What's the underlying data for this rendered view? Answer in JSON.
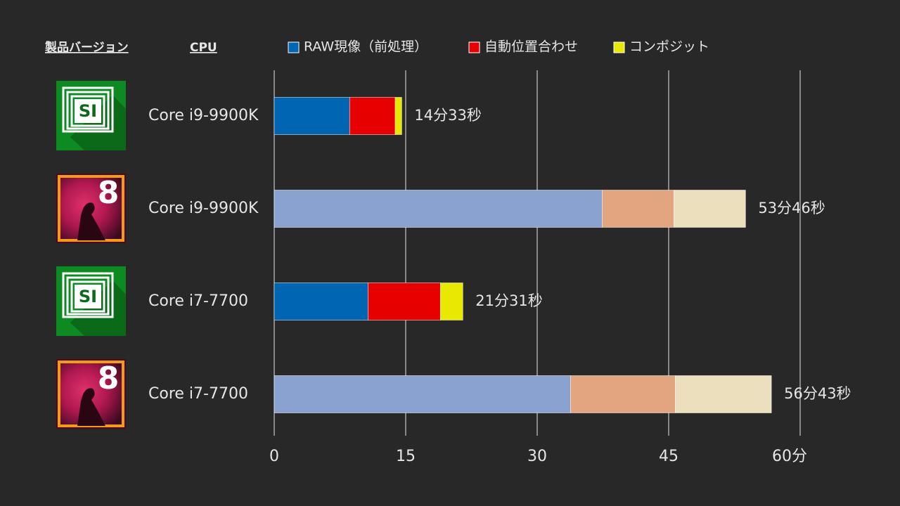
{
  "chart_data": {
    "type": "stacked-barh",
    "headers": [
      "製品バージョン",
      "CPU"
    ],
    "versions": [
      "SI",
      "8",
      "SI",
      "8"
    ],
    "categories": [
      "Core i9-9900K",
      "Core i9-9900K",
      "Core i7-7700",
      "Core i7-7700"
    ],
    "series": [
      {
        "name": "RAW現像（前処理）",
        "color": "#0066b3",
        "colors": [
          "#0066b3",
          "#8aa2d0",
          "#0066b3",
          "#8aa2d0"
        ],
        "values": [
          8.6,
          37.4,
          10.7,
          33.8
        ]
      },
      {
        "name": "自動位置合わせ",
        "color": "#e60000",
        "colors": [
          "#e60000",
          "#e2a57f",
          "#e60000",
          "#e2a57f"
        ],
        "values": [
          5.2,
          8.2,
          8.25,
          11.95
        ]
      },
      {
        "name": "コンポジット",
        "color": "#e8e800",
        "colors": [
          "#e8e800",
          "#ebdfbe",
          "#e8e800",
          "#ebdfbe"
        ],
        "values": [
          0.75,
          8.17,
          2.57,
          10.97
        ]
      }
    ],
    "totals": [
      14.55,
      53.77,
      21.52,
      56.72
    ],
    "total_labels": [
      "14分33秒",
      "53分46秒",
      "21分31秒",
      "56分43秒"
    ],
    "xlim": [
      0,
      60
    ],
    "xticks": [
      0,
      15,
      30,
      45,
      {
        "value": 60,
        "label": "60分"
      }
    ],
    "grid": true
  }
}
